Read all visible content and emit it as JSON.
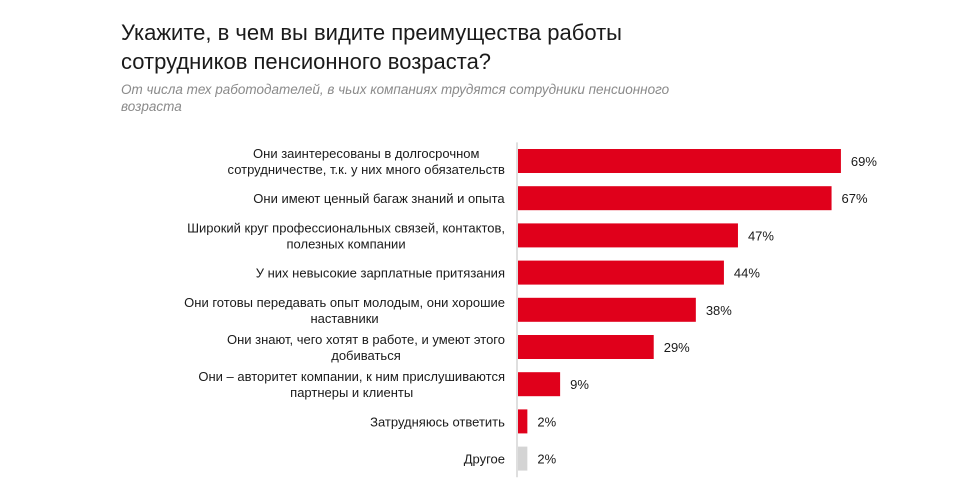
{
  "title": "Укажите, в чем вы видите преимущества работы сотрудников пенсионного возраста?",
  "subtitle": "От числа тех работодателей, в чьих компаниях трудятся сотрудники пенсионного возраста",
  "colors": {
    "primary_bar": "#e0001b",
    "other_bar": "#d4d4d4",
    "axis_line": "#bfbfbf"
  },
  "chart_data": {
    "type": "bar",
    "orientation": "horizontal",
    "title": "Укажите, в чем вы видите преимущества работы сотрудников пенсионного возраста?",
    "subtitle": "От числа тех работодателей, в чьих компаниях трудятся сотрудники пенсионного возраста",
    "xlabel": "",
    "ylabel": "",
    "xlim": [
      0,
      100
    ],
    "grid": false,
    "legend": "none",
    "unit": "%",
    "categories": [
      [
        "Они заинтересованы в долгосрочном",
        "сотрудничестве, т.к. у них много обязательств"
      ],
      [
        "Они имеют ценный багаж знаний и опыта"
      ],
      [
        "Широкий круг профессиональных связей, контактов,",
        "полезных компании"
      ],
      [
        "У них невысокие зарплатные притязания"
      ],
      [
        "Они готовы передавать опыт молодым, они хорошие",
        "наставники"
      ],
      [
        "Они знают, чего хотят в работе, и умеют этого",
        "добиваться"
      ],
      [
        "Они – авторитет компании, к ним прислушиваются",
        "партнеры и клиенты"
      ],
      [
        "Затрудняюсь ответить"
      ],
      [
        "Другое"
      ]
    ],
    "values": [
      69,
      67,
      47,
      44,
      38,
      29,
      9,
      2,
      2
    ],
    "value_labels": [
      "69%",
      "67%",
      "47%",
      "44%",
      "38%",
      "29%",
      "9%",
      "2%",
      "2%"
    ],
    "bar_colors": [
      "#e0001b",
      "#e0001b",
      "#e0001b",
      "#e0001b",
      "#e0001b",
      "#e0001b",
      "#e0001b",
      "#e0001b",
      "#d4d4d4"
    ]
  }
}
